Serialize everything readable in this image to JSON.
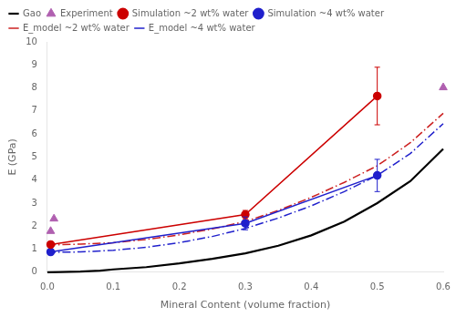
{
  "chart_data": {
    "type": "line",
    "x_label": "Mineral Content (volume fraction)",
    "y_label": "E (GPa)",
    "xlim": [
      0,
      0.6
    ],
    "ylim": [
      0,
      10
    ],
    "xticks": [
      {
        "value": 0,
        "label": "0.0"
      },
      0.1,
      0.2,
      0.3,
      0.4,
      0.5,
      0.6
    ],
    "yticks": [
      0,
      1,
      2,
      3,
      4,
      5,
      6,
      7,
      8,
      9,
      10
    ],
    "grid": false,
    "legend": "upper left",
    "series": [
      {
        "name": "Gao",
        "type": "line",
        "color": "#000000",
        "marker": "none",
        "line_style": "solid",
        "x": [
          0.0,
          0.02,
          0.05,
          0.08,
          0.1,
          0.15,
          0.2,
          0.25,
          0.3,
          0.35,
          0.4,
          0.45,
          0.5,
          0.55,
          0.6
        ],
        "values": [
          0.0,
          0.01,
          0.03,
          0.07,
          0.12,
          0.22,
          0.38,
          0.58,
          0.82,
          1.15,
          1.6,
          2.2,
          3.0,
          3.95,
          5.35
        ]
      },
      {
        "name": "Experiment",
        "type": "scatter",
        "color": "#b060b0",
        "marker": "triangle",
        "line_style": "none",
        "x": [
          0.005,
          0.01,
          0.6
        ],
        "values": [
          1.78,
          2.32,
          8.02
        ]
      },
      {
        "name": "Simulation ~2 wt% water",
        "type": "line",
        "color": "#cc0000",
        "marker": "circle",
        "line_style": "solid",
        "x": [
          0.005,
          0.3,
          0.5
        ],
        "values": [
          1.2,
          2.5,
          7.65
        ],
        "yerr": [
          0.08,
          0.18,
          1.25
        ]
      },
      {
        "name": "Simulation ~4 wt% water",
        "type": "line",
        "color": "#2020cc",
        "marker": "circle",
        "line_style": "solid",
        "x": [
          0.005,
          0.3,
          0.5
        ],
        "values": [
          0.88,
          2.12,
          4.2
        ],
        "yerr": [
          0.06,
          0.28,
          0.7
        ]
      },
      {
        "name": "E_model ~2 wt% water",
        "type": "line",
        "color": "#cc2020",
        "marker": "none",
        "line_style": "dashdot",
        "x": [
          0.0,
          0.05,
          0.1,
          0.15,
          0.2,
          0.25,
          0.3,
          0.35,
          0.4,
          0.45,
          0.5,
          0.55,
          0.6
        ],
        "values": [
          1.18,
          1.22,
          1.28,
          1.42,
          1.62,
          1.88,
          2.2,
          2.68,
          3.25,
          3.9,
          4.62,
          5.62,
          6.9
        ]
      },
      {
        "name": "E_model ~4 wt% water",
        "type": "line",
        "color": "#2020cc",
        "marker": "none",
        "line_style": "dashdot",
        "x": [
          0.0,
          0.05,
          0.1,
          0.15,
          0.2,
          0.25,
          0.3,
          0.35,
          0.4,
          0.45,
          0.5,
          0.55,
          0.6
        ],
        "values": [
          0.86,
          0.88,
          0.95,
          1.08,
          1.28,
          1.55,
          1.9,
          2.35,
          2.88,
          3.5,
          4.2,
          5.15,
          6.45
        ]
      }
    ]
  }
}
